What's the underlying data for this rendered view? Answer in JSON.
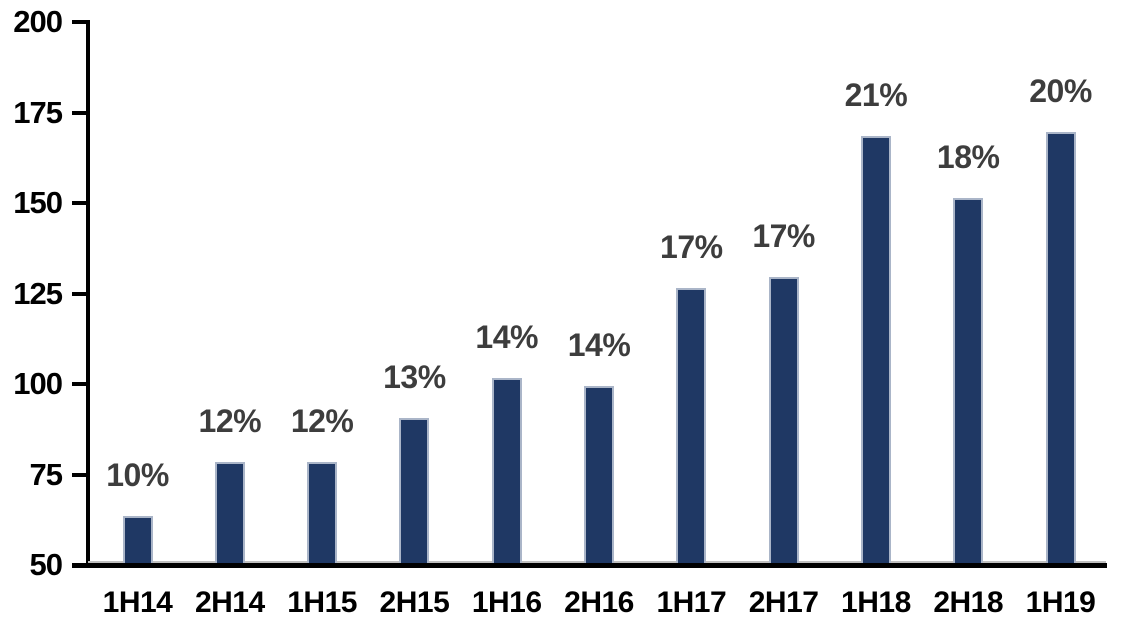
{
  "chart_data": {
    "type": "bar",
    "title": "",
    "xlabel": "",
    "ylabel": "",
    "categories": [
      "1H14",
      "2H14",
      "1H15",
      "2H15",
      "1H16",
      "2H16",
      "1H17",
      "2H17",
      "1H18",
      "2H18",
      "1H19"
    ],
    "values": [
      63,
      78,
      78,
      90,
      101,
      99,
      126,
      129,
      168,
      151,
      169
    ],
    "bar_labels": [
      "10%",
      "12%",
      "12%",
      "13%",
      "14%",
      "14%",
      "17%",
      "17%",
      "21%",
      "18%",
      "20%"
    ],
    "ylim": [
      50,
      200
    ],
    "yticks": [
      200,
      175,
      150,
      125,
      100,
      75,
      50
    ],
    "grid": false,
    "legend": "none",
    "colors": {
      "bar_fill": "#1f3864",
      "bar_border": "#aab5c8",
      "data_label": "#3d3d3d",
      "axis": "#000000",
      "tick_label": "#000000",
      "plot_border": "#bfbfbf",
      "background": "#ffffff"
    }
  }
}
